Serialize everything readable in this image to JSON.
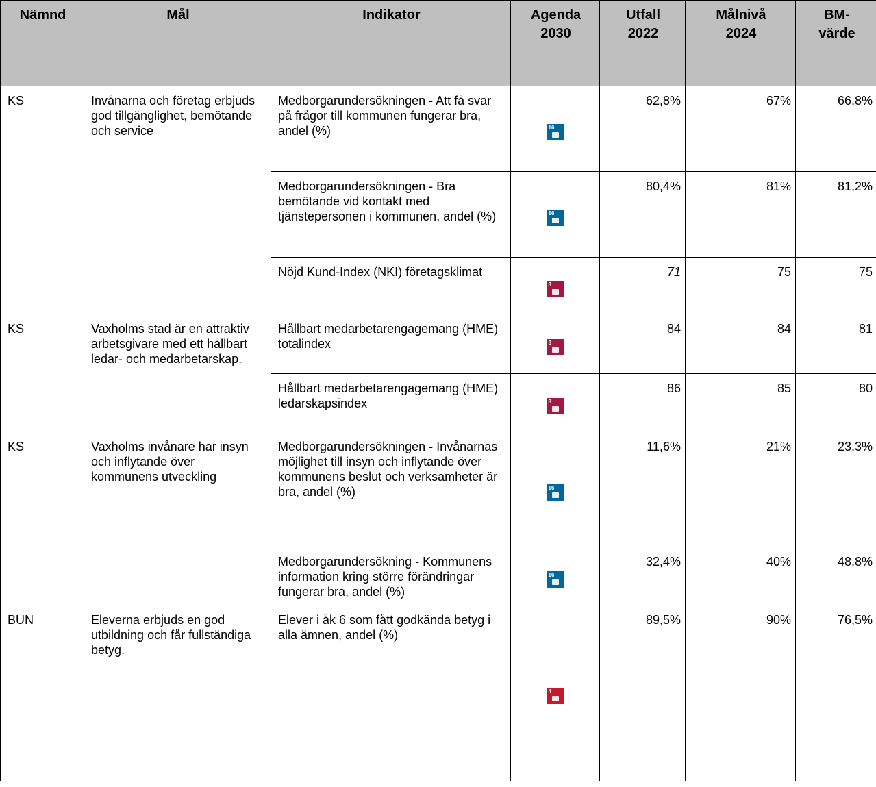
{
  "table": {
    "header": [
      "Nämnd",
      "Mål",
      "Indikator",
      "Agenda\n2030",
      "Utfall\n2022",
      "Målnivå\n2024",
      "BM-\nvärde"
    ],
    "groups": [
      {
        "namnd": "KS",
        "mal": "Invånarna och företag erbjuds god tillgänglighet, bemötande och service",
        "rows": [
          {
            "indikator": "Medborgarundersökningen - Att få svar på frågor till kommunen fungerar bra, andel (%)",
            "sdg": "16",
            "utfall": "62,8%",
            "malniva": "67%",
            "bm": "66,8%"
          },
          {
            "indikator": "Medborgarundersökningen - Bra bemötande vid kontakt med tjänstepersonen i kommunen, andel (%)",
            "sdg": "16",
            "utfall": "80,4%",
            "malniva": "81%",
            "bm": "81,2%"
          },
          {
            "indikator": "Nöjd Kund-Index (NKI) företagsklimat",
            "sdg": "8",
            "utfall": "71",
            "malniva": "75",
            "bm": "75"
          }
        ]
      },
      {
        "namnd": "KS",
        "mal": "Vaxholms stad är en attraktiv arbetsgivare med ett hållbart ledar- och medarbetarskap.",
        "rows": [
          {
            "indikator": "Hållbart medarbetarengagemang (HME) totalindex",
            "sdg": "8",
            "utfall": "84",
            "malniva": "84",
            "bm": "81"
          },
          {
            "indikator": "Hållbart medarbetarengagemang (HME) ledarskapsindex",
            "sdg": "8",
            "utfall": "86",
            "malniva": "85",
            "bm": "80"
          }
        ]
      },
      {
        "namnd": "KS",
        "mal": "Vaxholms invånare har insyn och inflytande över kommunens utveckling",
        "rows": [
          {
            "indikator": "Medborgarundersökningen - Invånarnas möjlighet till insyn och inflytande över kommunens beslut och verksamheter är bra, andel (%)",
            "sdg": "16",
            "utfall": "11,6%",
            "malniva": "21%",
            "bm": "23,3%"
          },
          {
            "indikator": "Medborgarundersökning - Kommunens information kring större förändringar fungerar bra, andel (%)",
            "sdg": "16",
            "utfall": "32,4%",
            "malniva": "40%",
            "bm": "48,8%"
          }
        ]
      },
      {
        "namnd": "BUN",
        "mal": "Eleverna erbjuds en god utbildning och får fullständiga betyg.",
        "rows": [
          {
            "indikator": "Elever i åk 6 som fått godkända betyg i alla ämnen, andel (%)",
            "sdg": "4",
            "utfall": "89,5%",
            "malniva": "90%",
            "bm": "76,5%"
          }
        ]
      }
    ]
  }
}
